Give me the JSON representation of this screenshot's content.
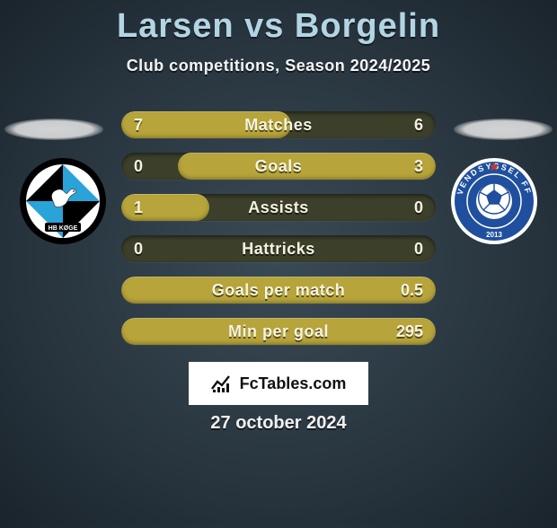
{
  "title": "Larsen vs Borgelin",
  "subtitle": "Club competitions, Season 2024/2025",
  "date": "27 october 2024",
  "watermark_text": "FcTables.com",
  "colors": {
    "title": "#b3d5e3",
    "bar_fill": "#b7a43a",
    "bar_track": "#3c3f2a",
    "text_light": "#f5f3e0"
  },
  "crest_left": {
    "name": "HB Køge",
    "ring": "#000000",
    "primary": "#2aa3d8",
    "secondary": "#000000",
    "inner_bg": "#ffffff"
  },
  "crest_right": {
    "name": "Vendsyssel FF",
    "ring": "#ffffff",
    "primary": "#1f4f9e",
    "accent": "#c43b2f",
    "year": "2013"
  },
  "bars": [
    {
      "label": "Matches",
      "left": "7",
      "right": "6",
      "fill_side": "left",
      "fill_pct": 54
    },
    {
      "label": "Goals",
      "left": "0",
      "right": "3",
      "fill_side": "right",
      "fill_pct": 82
    },
    {
      "label": "Assists",
      "left": "1",
      "right": "0",
      "fill_side": "left",
      "fill_pct": 28
    },
    {
      "label": "Hattricks",
      "left": "0",
      "right": "0",
      "fill_side": "none",
      "fill_pct": 0
    },
    {
      "label": "Goals per match",
      "left": "",
      "right": "0.5",
      "fill_side": "full",
      "fill_pct": 100
    },
    {
      "label": "Min per goal",
      "left": "",
      "right": "295",
      "fill_side": "full",
      "fill_pct": 100
    }
  ]
}
